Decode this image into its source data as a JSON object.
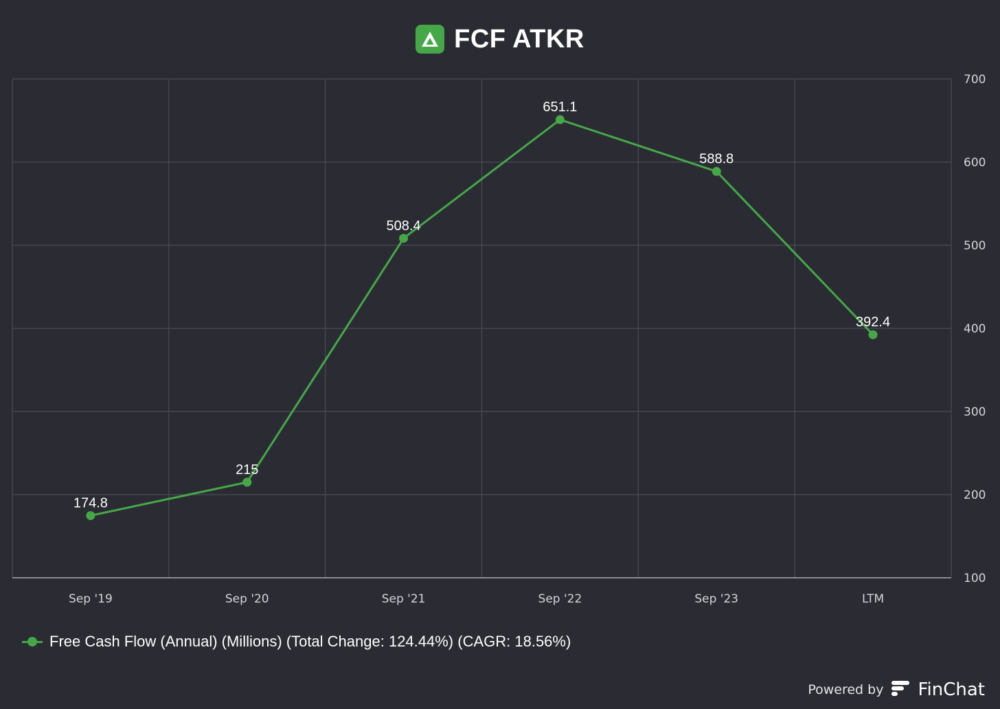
{
  "header": {
    "title": "FCF ATKR",
    "logo_icon": "atkore-logo-icon"
  },
  "colors": {
    "background": "#2a2b33",
    "series": "#45a748",
    "grid": "#4a4c55",
    "axis": "#a9abb2"
  },
  "chart_data": {
    "type": "line",
    "title": "FCF ATKR",
    "categories": [
      "Sep '19",
      "Sep '20",
      "Sep '21",
      "Sep '22",
      "Sep '23",
      "LTM"
    ],
    "series": [
      {
        "name": "Free Cash Flow (Annual) (Millions) (Total Change: 124.44%) (CAGR: 18.56%)",
        "values": [
          174.8,
          215,
          508.4,
          651.1,
          588.8,
          392.4
        ],
        "labels": [
          "174.8",
          "215",
          "508.4",
          "651.1",
          "588.8",
          "392.4"
        ]
      }
    ],
    "ylim": [
      100,
      700
    ],
    "yticks": [
      100,
      200,
      300,
      400,
      500,
      600,
      700
    ],
    "y_axis_side": "right",
    "grid": true,
    "legend_position": "bottom-left"
  },
  "legend": {
    "label": "Free Cash Flow (Annual) (Millions) (Total Change: 124.44%) (CAGR: 18.56%)"
  },
  "footer": {
    "powered_by": "Powered by",
    "brand": "FinChat",
    "brand_icon": "finchat-logo-icon"
  }
}
